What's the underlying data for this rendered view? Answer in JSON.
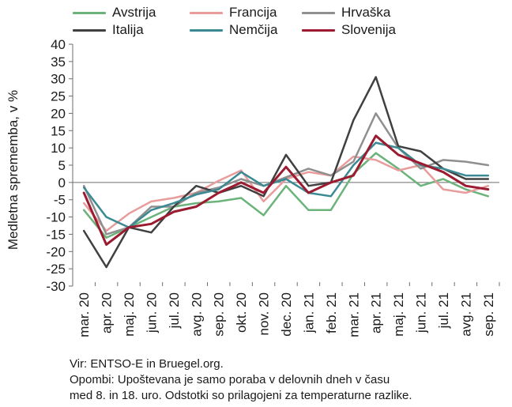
{
  "chart_data": {
    "type": "line",
    "ylabel": "Medletna sprememba, v %",
    "ylim": [
      -30,
      40
    ],
    "yticks": [
      40,
      35,
      30,
      25,
      20,
      15,
      10,
      5,
      0,
      -5,
      -10,
      -15,
      -20,
      -25,
      -30
    ],
    "categories": [
      "mar. 20",
      "apr. 20",
      "maj. 20",
      "jun. 20",
      "jul. 20",
      "avg. 20",
      "sep. 20",
      "okt. 20",
      "nov. 20",
      "dec. 20",
      "jan. 21",
      "feb. 21",
      "mar. 21",
      "apr. 21",
      "maj. 21",
      "jun. 21",
      "jul. 21",
      "avg. 21",
      "sep. 21"
    ],
    "grid": false,
    "legend": "top",
    "series": [
      {
        "name": "Avstrija",
        "color": "#6bb37a",
        "values": [
          -8,
          -16,
          -13,
          -10,
          -7,
          -6,
          -5.5,
          -4.5,
          -9.5,
          -1,
          -8,
          -8,
          2.5,
          8.5,
          4,
          -1,
          1,
          -2,
          -4
        ]
      },
      {
        "name": "Francija",
        "color": "#e89c9c",
        "values": [
          -6,
          -14,
          -9,
          -5.5,
          -4.5,
          -3,
          0.5,
          3.5,
          -5.5,
          1,
          3,
          2,
          7.5,
          6.5,
          3.5,
          5,
          -2,
          -3,
          -1
        ]
      },
      {
        "name": "Hrvaška",
        "color": "#8f8f8f",
        "values": [
          -1,
          -15,
          -13,
          -7,
          -7,
          -3,
          -1.5,
          1,
          -1,
          1.5,
          4,
          2,
          6,
          20,
          10,
          4,
          6.5,
          6,
          5
        ]
      },
      {
        "name": "Italija",
        "color": "#404040",
        "values": [
          -14,
          -24.5,
          -13,
          -14.5,
          -7,
          -1,
          -3,
          -1,
          -4,
          8,
          -1,
          0,
          18,
          30.5,
          10.5,
          9,
          4,
          1,
          1
        ]
      },
      {
        "name": "Nemčija",
        "color": "#3b8a93",
        "values": [
          -1.5,
          -10,
          -13,
          -8,
          -6,
          -3.5,
          -2,
          3,
          -1,
          1,
          -3,
          -4,
          5,
          11.5,
          10,
          5,
          4,
          2,
          2
        ]
      },
      {
        "name": "Slovenija",
        "color": "#9b1b30",
        "values": [
          -3,
          -18,
          -13,
          -12,
          -8.5,
          -7,
          -3,
          0,
          -3,
          4.5,
          -3,
          0,
          2,
          13.5,
          8,
          5.5,
          3,
          -1,
          -2
        ]
      }
    ]
  },
  "footnotes": {
    "source": "Vir: ENTSO-E in Bruegel.org.",
    "note_line1": "Opombi: Upoštevana je samo poraba v delovnih dneh v času",
    "note_line2": "med 8. in 18. uro. Odstotki so prilagojeni za temperaturne razlike."
  }
}
